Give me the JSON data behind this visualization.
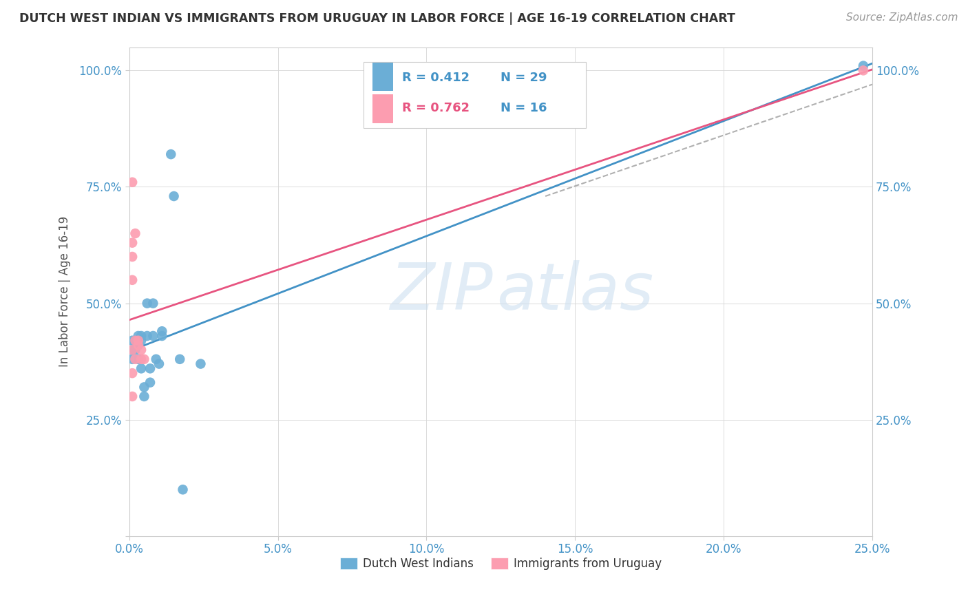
{
  "title": "DUTCH WEST INDIAN VS IMMIGRANTS FROM URUGUAY IN LABOR FORCE | AGE 16-19 CORRELATION CHART",
  "source": "Source: ZipAtlas.com",
  "ylabel": "In Labor Force | Age 16-19",
  "blue_R": 0.412,
  "blue_N": 29,
  "pink_R": 0.762,
  "pink_N": 16,
  "blue_color": "#6baed6",
  "pink_color": "#fc9db0",
  "blue_line_color": "#4292c6",
  "pink_line_color": "#e75480",
  "dashed_line_color": "#b0b0b0",
  "background_color": "#ffffff",
  "blue_scatter": [
    [
      0.001,
      0.42
    ],
    [
      0.001,
      0.4
    ],
    [
      0.001,
      0.38
    ],
    [
      0.002,
      0.42
    ],
    [
      0.002,
      0.4
    ],
    [
      0.003,
      0.43
    ],
    [
      0.003,
      0.38
    ],
    [
      0.003,
      0.41
    ],
    [
      0.004,
      0.42
    ],
    [
      0.004,
      0.43
    ],
    [
      0.004,
      0.36
    ],
    [
      0.005,
      0.3
    ],
    [
      0.005,
      0.32
    ],
    [
      0.006,
      0.5
    ],
    [
      0.006,
      0.43
    ],
    [
      0.007,
      0.36
    ],
    [
      0.007,
      0.33
    ],
    [
      0.008,
      0.5
    ],
    [
      0.008,
      0.43
    ],
    [
      0.009,
      0.38
    ],
    [
      0.01,
      0.37
    ],
    [
      0.011,
      0.44
    ],
    [
      0.011,
      0.43
    ],
    [
      0.014,
      0.82
    ],
    [
      0.015,
      0.73
    ],
    [
      0.017,
      0.38
    ],
    [
      0.018,
      0.1
    ],
    [
      0.024,
      0.37
    ],
    [
      0.247,
      1.01
    ]
  ],
  "pink_scatter": [
    [
      0.001,
      0.35
    ],
    [
      0.001,
      0.4
    ],
    [
      0.001,
      0.55
    ],
    [
      0.001,
      0.6
    ],
    [
      0.001,
      0.63
    ],
    [
      0.001,
      0.3
    ],
    [
      0.001,
      0.76
    ],
    [
      0.002,
      0.42
    ],
    [
      0.002,
      0.38
    ],
    [
      0.002,
      0.65
    ],
    [
      0.003,
      0.42
    ],
    [
      0.003,
      0.41
    ],
    [
      0.004,
      0.4
    ],
    [
      0.004,
      0.38
    ],
    [
      0.005,
      0.38
    ],
    [
      0.247,
      1.0
    ]
  ],
  "xlim": [
    0,
    0.25
  ],
  "ylim": [
    0,
    1.05
  ]
}
